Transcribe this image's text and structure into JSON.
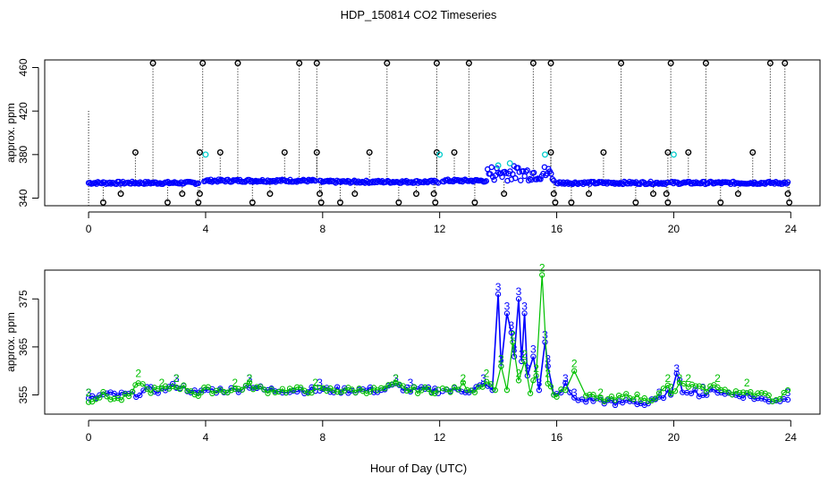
{
  "title": "HDP_150814  CO2 Timeseries",
  "xlabel": "Hour of Day (UTC)",
  "colors": {
    "axis": "#000000",
    "series2": "#00c000",
    "series3": "#0000ff",
    "cyan": "#00cccc",
    "black": "#000000"
  },
  "chart_data": [
    {
      "type": "scatter",
      "panel": "top",
      "title": "",
      "xlabel": "",
      "ylabel": "approx. ppm",
      "xlim": [
        -1.5,
        25
      ],
      "ylim": [
        333,
        467
      ],
      "xticks": [
        0,
        4,
        8,
        12,
        16,
        20,
        24
      ],
      "yticks": [
        340,
        380,
        420,
        460
      ],
      "baseline_segments": [
        {
          "x0": 0.0,
          "x1": 3.75,
          "y": 354,
          "color": "blue"
        },
        {
          "x0": 3.95,
          "x1": 7.75,
          "y": 356,
          "color": "blue"
        },
        {
          "x0": 7.9,
          "x1": 11.95,
          "y": 355,
          "color": "blue"
        },
        {
          "x0": 12.1,
          "x1": 15.9,
          "y": 356,
          "color": "blue"
        },
        {
          "x0": 16.0,
          "x1": 19.8,
          "y": 354,
          "color": "blue"
        },
        {
          "x0": 19.9,
          "x1": 23.9,
          "y": 354,
          "color": "blue"
        }
      ],
      "spikes": [
        {
          "x": 2.2,
          "y": 464
        },
        {
          "x": 3.9,
          "y": 464
        },
        {
          "x": 5.1,
          "y": 464
        },
        {
          "x": 7.2,
          "y": 464
        },
        {
          "x": 7.8,
          "y": 464
        },
        {
          "x": 10.2,
          "y": 464
        },
        {
          "x": 11.9,
          "y": 464
        },
        {
          "x": 13.0,
          "y": 464
        },
        {
          "x": 15.2,
          "y": 464
        },
        {
          "x": 15.8,
          "y": 464
        },
        {
          "x": 18.2,
          "y": 464
        },
        {
          "x": 19.9,
          "y": 464
        },
        {
          "x": 21.1,
          "y": 464
        },
        {
          "x": 23.3,
          "y": 464
        },
        {
          "x": 23.8,
          "y": 464
        }
      ],
      "outliers_high": [
        {
          "x": 1.6,
          "y": 382
        },
        {
          "x": 3.8,
          "y": 382
        },
        {
          "x": 4.5,
          "y": 382
        },
        {
          "x": 6.7,
          "y": 382
        },
        {
          "x": 7.8,
          "y": 382
        },
        {
          "x": 9.6,
          "y": 382
        },
        {
          "x": 11.9,
          "y": 382
        },
        {
          "x": 12.5,
          "y": 382
        },
        {
          "x": 15.8,
          "y": 382
        },
        {
          "x": 17.6,
          "y": 382
        },
        {
          "x": 19.8,
          "y": 382
        },
        {
          "x": 20.5,
          "y": 382
        },
        {
          "x": 22.7,
          "y": 382
        }
      ],
      "outliers_low": [
        {
          "x": 0.5,
          "y": 336
        },
        {
          "x": 1.1,
          "y": 344
        },
        {
          "x": 2.7,
          "y": 336
        },
        {
          "x": 3.2,
          "y": 344
        },
        {
          "x": 3.8,
          "y": 344
        },
        {
          "x": 3.75,
          "y": 336
        },
        {
          "x": 5.6,
          "y": 336
        },
        {
          "x": 6.2,
          "y": 344
        },
        {
          "x": 7.9,
          "y": 344
        },
        {
          "x": 7.95,
          "y": 336
        },
        {
          "x": 8.6,
          "y": 336
        },
        {
          "x": 9.1,
          "y": 344
        },
        {
          "x": 10.6,
          "y": 336
        },
        {
          "x": 11.2,
          "y": 344
        },
        {
          "x": 11.8,
          "y": 344
        },
        {
          "x": 11.85,
          "y": 336
        },
        {
          "x": 13.2,
          "y": 336
        },
        {
          "x": 14.2,
          "y": 344
        },
        {
          "x": 15.9,
          "y": 344
        },
        {
          "x": 15.95,
          "y": 336
        },
        {
          "x": 16.5,
          "y": 336
        },
        {
          "x": 17.1,
          "y": 344
        },
        {
          "x": 18.7,
          "y": 336
        },
        {
          "x": 19.3,
          "y": 344
        },
        {
          "x": 19.75,
          "y": 344
        },
        {
          "x": 19.8,
          "y": 336
        },
        {
          "x": 21.6,
          "y": 336
        },
        {
          "x": 22.2,
          "y": 344
        },
        {
          "x": 23.9,
          "y": 344
        },
        {
          "x": 23.95,
          "y": 336
        }
      ],
      "cyan_points": [
        {
          "x": 4.0,
          "y": 380
        },
        {
          "x": 12.0,
          "y": 380
        },
        {
          "x": 20.0,
          "y": 380
        },
        {
          "x": 14.0,
          "y": 370
        },
        {
          "x": 14.4,
          "y": 372
        },
        {
          "x": 15.6,
          "y": 380
        }
      ]
    },
    {
      "type": "line",
      "panel": "bottom",
      "title": "",
      "xlabel": "Hour of Day (UTC)",
      "ylabel": "approx. ppm",
      "xlim": [
        -1.5,
        25
      ],
      "ylim": [
        351,
        381
      ],
      "xticks": [
        0,
        4,
        8,
        12,
        16,
        20,
        24
      ],
      "yticks": [
        355,
        365,
        375
      ],
      "point_labels": [
        "2",
        "3"
      ],
      "series": [
        {
          "name": "3",
          "color": "blue",
          "x": [
            0.0,
            0.5,
            1.0,
            1.5,
            2.0,
            2.5,
            3.0,
            3.5,
            3.75,
            3.95,
            4.5,
            5.0,
            5.5,
            6.0,
            6.5,
            7.0,
            7.5,
            7.75,
            7.9,
            8.5,
            9.0,
            9.5,
            10.0,
            10.5,
            11.0,
            11.5,
            11.95,
            12.1,
            12.5,
            13.0,
            13.5,
            13.8,
            14.0,
            14.1,
            14.3,
            14.45,
            14.55,
            14.7,
            14.8,
            14.9,
            15.0,
            15.2,
            15.4,
            15.6,
            15.7,
            15.9,
            16.0,
            16.3,
            16.6,
            17.0,
            17.5,
            18.0,
            18.5,
            19.0,
            19.5,
            19.8,
            19.9,
            20.1,
            20.3,
            20.6,
            21.0,
            21.5,
            22.0,
            22.5,
            23.0,
            23.5,
            23.9
          ],
          "y": [
            354,
            355,
            355,
            355,
            356,
            356,
            357,
            356,
            355,
            356,
            356,
            356,
            357,
            356,
            356,
            356,
            356,
            356,
            356,
            356,
            356,
            356,
            356,
            357,
            356,
            356,
            356,
            356,
            356,
            356,
            357,
            356,
            376,
            361,
            372,
            368,
            363,
            375,
            362,
            372,
            359,
            363,
            356,
            366,
            361,
            355,
            355,
            357,
            354,
            354,
            354,
            353,
            354,
            353,
            354,
            356,
            355,
            359,
            356,
            356,
            355,
            356,
            355,
            355,
            354,
            354,
            354
          ]
        },
        {
          "name": "2",
          "color": "green",
          "x": [
            0.0,
            0.5,
            1.0,
            1.5,
            1.7,
            2.0,
            2.5,
            3.0,
            3.5,
            3.75,
            3.95,
            4.5,
            5.0,
            5.5,
            6.0,
            6.5,
            7.0,
            7.5,
            7.75,
            7.9,
            8.5,
            9.0,
            9.5,
            10.0,
            10.5,
            11.0,
            11.5,
            11.95,
            12.1,
            12.5,
            12.8,
            13.2,
            13.6,
            13.9,
            14.1,
            14.3,
            14.5,
            14.7,
            14.9,
            15.1,
            15.3,
            15.5,
            15.7,
            15.9,
            16.0,
            16.3,
            16.6,
            17.0,
            17.5,
            18.0,
            18.5,
            19.0,
            19.5,
            19.8,
            19.9,
            20.2,
            20.5,
            21.0,
            21.5,
            22.0,
            22.5,
            23.0,
            23.5,
            23.9
          ],
          "y": [
            354,
            355,
            354,
            355,
            358,
            356,
            356,
            357,
            356,
            355,
            356,
            356,
            356,
            357,
            356,
            356,
            356,
            356,
            356,
            356,
            356,
            356,
            356,
            356,
            357,
            356,
            356,
            356,
            356,
            356,
            357,
            356,
            358,
            356,
            361,
            356,
            366,
            358,
            362,
            356,
            359,
            380,
            358,
            355,
            355,
            356,
            360,
            355,
            354,
            354,
            355,
            354,
            355,
            357,
            355,
            357,
            357,
            356,
            357,
            355,
            356,
            355,
            354,
            356
          ]
        }
      ]
    }
  ]
}
